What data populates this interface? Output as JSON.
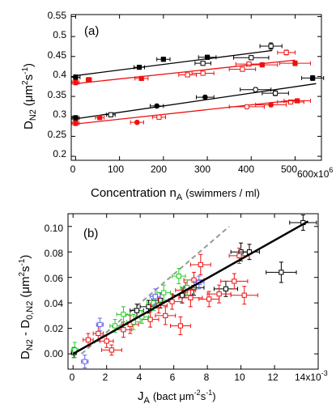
{
  "chart_data": [
    {
      "type": "scatter",
      "panel_label": "(a)",
      "ylabel_main": "D",
      "ylabel_sub": "N2",
      "ylabel_units": "(μm",
      "ylabel_units_exp": "2",
      "ylabel_units_s": "s",
      "ylabel_units_s_exp": "-1",
      "ylabel_close": ")",
      "xlabel_main": "Concentration n",
      "xlabel_sub": "A",
      "xlabel_units": "(swimmers / ml)",
      "xmultiplier": "x10",
      "xmultiplier_exp": "6",
      "xlim": [
        -10,
        560
      ],
      "ylim": [
        0.19,
        0.555
      ],
      "xticks": [
        "0",
        "100",
        "200",
        "300",
        "400",
        "500",
        "600"
      ],
      "yticks": [
        "0.2",
        "0.25",
        "0.3",
        "0.35",
        "0.4",
        "0.45",
        "0.5",
        "0.55"
      ],
      "xtick_values": [
        0,
        100,
        200,
        300,
        400,
        500
      ],
      "ytick_values": [
        0.2,
        0.25,
        0.3,
        0.35,
        0.4,
        0.45,
        0.5,
        0.55
      ],
      "series": [
        {
          "color": "#000000",
          "points": [
            {
              "x": 0,
              "y": 0.398,
              "xerr": 10,
              "yerr": 0.006,
              "m": "s",
              "f": true
            },
            {
              "x": 145,
              "y": 0.423,
              "xerr": 12,
              "yerr": 0.004,
              "m": "s",
              "f": true
            },
            {
              "x": 200,
              "y": 0.443,
              "xerr": 15,
              "yerr": 0.005,
              "m": "s",
              "f": true
            },
            {
              "x": 290,
              "y": 0.433,
              "xerr": 18,
              "yerr": 0.005,
              "m": "s",
              "f": false
            },
            {
              "x": 300,
              "y": 0.448,
              "xerr": 20,
              "yerr": 0.005,
              "m": "s",
              "f": true
            },
            {
              "x": 400,
              "y": 0.447,
              "xerr": 40,
              "yerr": 0.005,
              "m": "s",
              "f": false
            },
            {
              "x": 445,
              "y": 0.476,
              "xerr": 25,
              "yerr": 0.008,
              "m": "s",
              "f": false
            }
          ],
          "fit": [
            [
              0,
              0.402
            ],
            [
              448,
              0.465
            ]
          ]
        },
        {
          "color": "#ee1111",
          "points": [
            {
              "x": 0,
              "y": 0.385,
              "xerr": 8,
              "yerr": 0.006,
              "m": "s",
              "f": true
            },
            {
              "x": 30,
              "y": 0.392,
              "xerr": 6,
              "yerr": 0.005,
              "m": "s",
              "f": true
            },
            {
              "x": 150,
              "y": 0.395,
              "xerr": 15,
              "yerr": 0.004,
              "m": "s",
              "f": true
            },
            {
              "x": 255,
              "y": 0.404,
              "xerr": 20,
              "yerr": 0.005,
              "m": "s",
              "f": false
            },
            {
              "x": 290,
              "y": 0.408,
              "xerr": 25,
              "yerr": 0.005,
              "m": "s",
              "f": false
            },
            {
              "x": 380,
              "y": 0.418,
              "xerr": 30,
              "yerr": 0.005,
              "m": "s",
              "f": false
            },
            {
              "x": 395,
              "y": 0.431,
              "xerr": 30,
              "yerr": 0.005,
              "m": "s",
              "f": false
            },
            {
              "x": 425,
              "y": 0.429,
              "xerr": 35,
              "yerr": 0.005,
              "m": "s",
              "f": true
            },
            {
              "x": 480,
              "y": 0.46,
              "xerr": 20,
              "yerr": 0.006,
              "m": "s",
              "f": false
            },
            {
              "x": 500,
              "y": 0.433,
              "xerr": 35,
              "yerr": 0.006,
              "m": "s",
              "f": true
            }
          ],
          "fit": [
            [
              0,
              0.382
            ],
            [
              500,
              0.441
            ]
          ]
        },
        {
          "color": "#000000",
          "points": [
            {
              "x": 0,
              "y": 0.296,
              "xerr": 8,
              "yerr": 0.006,
              "m": "s",
              "f": true
            },
            {
              "x": 80,
              "y": 0.304,
              "xerr": 10,
              "yerr": 0.005,
              "m": "s",
              "f": false
            },
            {
              "x": 185,
              "y": 0.326,
              "xerr": 15,
              "yerr": 0.004,
              "m": "o",
              "f": true
            },
            {
              "x": 295,
              "y": 0.348,
              "xerr": 20,
              "yerr": 0.004,
              "m": "o",
              "f": true
            },
            {
              "x": 410,
              "y": 0.367,
              "xerr": 35,
              "yerr": 0.005,
              "m": "o",
              "f": false
            },
            {
              "x": 455,
              "y": 0.358,
              "xerr": 30,
              "yerr": 0.006,
              "m": "s",
              "f": false
            },
            {
              "x": 540,
              "y": 0.396,
              "xerr": 25,
              "yerr": 0.006,
              "m": "s",
              "f": true
            }
          ],
          "fit": [
            [
              0,
              0.294
            ],
            [
              548,
              0.382
            ]
          ]
        },
        {
          "color": "#ee1111",
          "points": [
            {
              "x": 0,
              "y": 0.283,
              "xerr": 8,
              "yerr": 0.006,
              "m": "s",
              "f": true
            },
            {
              "x": 55,
              "y": 0.297,
              "xerr": 10,
              "yerr": 0.005,
              "m": "s",
              "f": true
            },
            {
              "x": 140,
              "y": 0.285,
              "xerr": 15,
              "yerr": 0.004,
              "m": "o",
              "f": true
            },
            {
              "x": 190,
              "y": 0.298,
              "xerr": 15,
              "yerr": 0.005,
              "m": "s",
              "f": false
            },
            {
              "x": 390,
              "y": 0.324,
              "xerr": 40,
              "yerr": 0.005,
              "m": "o",
              "f": false
            },
            {
              "x": 445,
              "y": 0.329,
              "xerr": 35,
              "yerr": 0.005,
              "m": "o",
              "f": true
            },
            {
              "x": 490,
              "y": 0.336,
              "xerr": 30,
              "yerr": 0.005,
              "m": "s",
              "f": false
            },
            {
              "x": 505,
              "y": 0.339,
              "xerr": 30,
              "yerr": 0.005,
              "m": "s",
              "f": true
            }
          ],
          "fit": [
            [
              0,
              0.281
            ],
            [
              510,
              0.342
            ]
          ]
        }
      ]
    },
    {
      "type": "scatter",
      "panel_label": "(b)",
      "ylabel_main": "D",
      "ylabel_sub": "N2",
      "ylabel_mid": " - D",
      "ylabel_sub2": "0,N2",
      "ylabel_units": "(μm",
      "ylabel_units_exp": "2",
      "ylabel_units_s": "s",
      "ylabel_units_s_exp": "-1",
      "ylabel_close": ")",
      "xlabel_main": "J",
      "xlabel_sub": "A",
      "xlabel_units": "(bact μm",
      "xlabel_units_exp": "-2",
      "xlabel_units_s": "s",
      "xlabel_units_s_exp": "-1",
      "xlabel_close": ")",
      "xmultiplier": "x10",
      "xmultiplier_exp": "-3",
      "xlim": [
        -0.3,
        14.6
      ],
      "ylim": [
        -0.012,
        0.11
      ],
      "xticks": [
        "0",
        "2",
        "4",
        "6",
        "8",
        "10",
        "12",
        "14"
      ],
      "yticks": [
        "0.00",
        "0.02",
        "0.04",
        "0.06",
        "0.08",
        "0.10"
      ],
      "xtick_values": [
        0,
        2,
        4,
        6,
        8,
        10,
        12
      ],
      "ytick_values": [
        0,
        0.02,
        0.04,
        0.06,
        0.08,
        0.1
      ],
      "fit_solid": [
        [
          0,
          0.0
        ],
        [
          14,
          0.104
        ]
      ],
      "fit_dashed": [
        [
          0.5,
          0.0
        ],
        [
          9.3,
          0.1
        ]
      ],
      "series": [
        {
          "color": "#000000",
          "points": [
            {
              "x": 0.05,
              "y": 0.001,
              "xerr": 0.15,
              "yerr": 0.004
            },
            {
              "x": 3.8,
              "y": 0.034,
              "xerr": 0.4,
              "yerr": 0.005
            },
            {
              "x": 4.5,
              "y": 0.037,
              "xerr": 0.5,
              "yerr": 0.005
            },
            {
              "x": 5.2,
              "y": 0.042,
              "xerr": 0.5,
              "yerr": 0.006
            },
            {
              "x": 6.5,
              "y": 0.046,
              "xerr": 0.6,
              "yerr": 0.006
            },
            {
              "x": 7.2,
              "y": 0.052,
              "xerr": 0.6,
              "yerr": 0.006
            },
            {
              "x": 9.1,
              "y": 0.051,
              "xerr": 0.7,
              "yerr": 0.006
            },
            {
              "x": 10.0,
              "y": 0.08,
              "xerr": 0.6,
              "yerr": 0.007
            },
            {
              "x": 10.5,
              "y": 0.08,
              "xerr": 0.6,
              "yerr": 0.006
            },
            {
              "x": 12.4,
              "y": 0.064,
              "xerr": 0.9,
              "yerr": 0.008
            },
            {
              "x": 13.7,
              "y": 0.103,
              "xerr": 0.8,
              "yerr": 0.006
            }
          ]
        },
        {
          "color": "#ee1111",
          "points": [
            {
              "x": 0.9,
              "y": 0.011,
              "xerr": 0.3,
              "yerr": 0.005
            },
            {
              "x": 1.5,
              "y": 0.016,
              "xerr": 0.3,
              "yerr": 0.006
            },
            {
              "x": 2.0,
              "y": 0.01,
              "xerr": 0.4,
              "yerr": 0.005
            },
            {
              "x": 2.3,
              "y": 0.003,
              "xerr": 0.6,
              "yerr": 0.004
            },
            {
              "x": 3.0,
              "y": 0.019,
              "xerr": 0.5,
              "yerr": 0.006
            },
            {
              "x": 3.4,
              "y": 0.023,
              "xerr": 0.5,
              "yerr": 0.007
            },
            {
              "x": 4.6,
              "y": 0.027,
              "xerr": 0.5,
              "yerr": 0.006
            },
            {
              "x": 5.1,
              "y": 0.038,
              "xerr": 0.5,
              "yerr": 0.006
            },
            {
              "x": 5.5,
              "y": 0.03,
              "xerr": 0.6,
              "yerr": 0.007
            },
            {
              "x": 5.9,
              "y": 0.041,
              "xerr": 0.6,
              "yerr": 0.006
            },
            {
              "x": 6.4,
              "y": 0.022,
              "xerr": 0.6,
              "yerr": 0.007
            },
            {
              "x": 6.7,
              "y": 0.05,
              "xerr": 0.6,
              "yerr": 0.006
            },
            {
              "x": 7.0,
              "y": 0.044,
              "xerr": 0.7,
              "yerr": 0.007
            },
            {
              "x": 7.2,
              "y": 0.058,
              "xerr": 0.6,
              "yerr": 0.006
            },
            {
              "x": 7.6,
              "y": 0.07,
              "xerr": 0.6,
              "yerr": 0.008
            },
            {
              "x": 8.1,
              "y": 0.043,
              "xerr": 0.6,
              "yerr": 0.006
            },
            {
              "x": 8.7,
              "y": 0.047,
              "xerr": 0.7,
              "yerr": 0.007
            },
            {
              "x": 9.6,
              "y": 0.057,
              "xerr": 0.8,
              "yerr": 0.006
            },
            {
              "x": 9.9,
              "y": 0.077,
              "xerr": 0.6,
              "yerr": 0.006
            },
            {
              "x": 10.2,
              "y": 0.046,
              "xerr": 0.8,
              "yerr": 0.007
            }
          ]
        },
        {
          "color": "#22cc22",
          "points": [
            {
              "x": 0.1,
              "y": 0.003,
              "xerr": 0.2,
              "yerr": 0.006
            },
            {
              "x": 2.5,
              "y": 0.022,
              "xerr": 0.3,
              "yerr": 0.005
            },
            {
              "x": 3.0,
              "y": 0.031,
              "xerr": 0.4,
              "yerr": 0.006
            },
            {
              "x": 3.6,
              "y": 0.025,
              "xerr": 0.4,
              "yerr": 0.006
            },
            {
              "x": 4.1,
              "y": 0.029,
              "xerr": 0.4,
              "yerr": 0.005
            },
            {
              "x": 4.8,
              "y": 0.04,
              "xerr": 0.4,
              "yerr": 0.006
            },
            {
              "x": 5.4,
              "y": 0.048,
              "xerr": 0.4,
              "yerr": 0.006
            },
            {
              "x": 6.3,
              "y": 0.061,
              "xerr": 0.4,
              "yerr": 0.006
            },
            {
              "x": 6.8,
              "y": 0.052,
              "xerr": 0.4,
              "yerr": 0.006
            }
          ]
        },
        {
          "color": "#6666ee",
          "points": [
            {
              "x": 0.7,
              "y": -0.006,
              "xerr": 0.2,
              "yerr": 0.005
            },
            {
              "x": 1.6,
              "y": 0.023,
              "xerr": 0.2,
              "yerr": 0.005
            },
            {
              "x": 4.9,
              "y": 0.045,
              "xerr": 0.3,
              "yerr": 0.006
            },
            {
              "x": 7.5,
              "y": 0.056,
              "xerr": 0.3,
              "yerr": 0.005
            }
          ]
        }
      ]
    }
  ]
}
